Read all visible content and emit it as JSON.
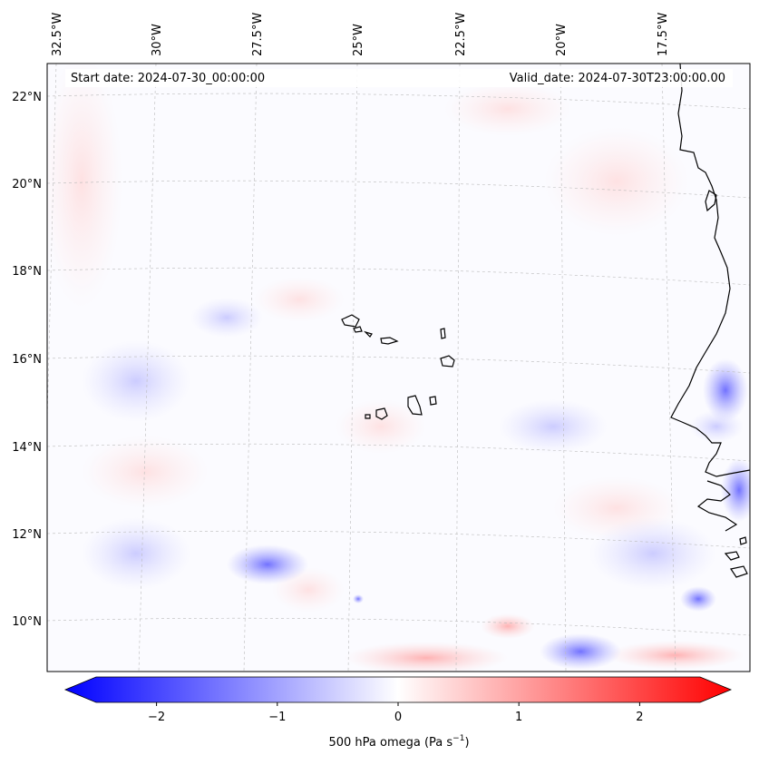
{
  "header": {
    "start_date": "Start date: 2024-07-30_00:00:00",
    "valid_date": "Valid_date: 2024-07-30T23:00:00.00"
  },
  "map": {
    "variable": "500 hPa omega",
    "longitude_labels": [
      "32.5°W",
      "30°W",
      "27.5°W",
      "25°W",
      "22.5°W",
      "20°W",
      "17.5°W"
    ],
    "latitude_labels": [
      "22°N",
      "20°N",
      "18°N",
      "16°N",
      "14°N",
      "12°N",
      "10°N"
    ],
    "colors": {
      "negative": "#0000ff",
      "zero": "#ffffff",
      "positive": "#ff0000",
      "coastline": "#000000"
    }
  },
  "colorbar": {
    "ticks": [
      "−2",
      "−1",
      "0",
      "1",
      "2"
    ],
    "tick_values": [
      -2,
      -1,
      0,
      1,
      2
    ],
    "range": [
      -2.5,
      2.5
    ],
    "extend": "both",
    "label_main": "500 hPa omega (Pa s",
    "label_sup": "−1",
    "label_end": ")"
  }
}
